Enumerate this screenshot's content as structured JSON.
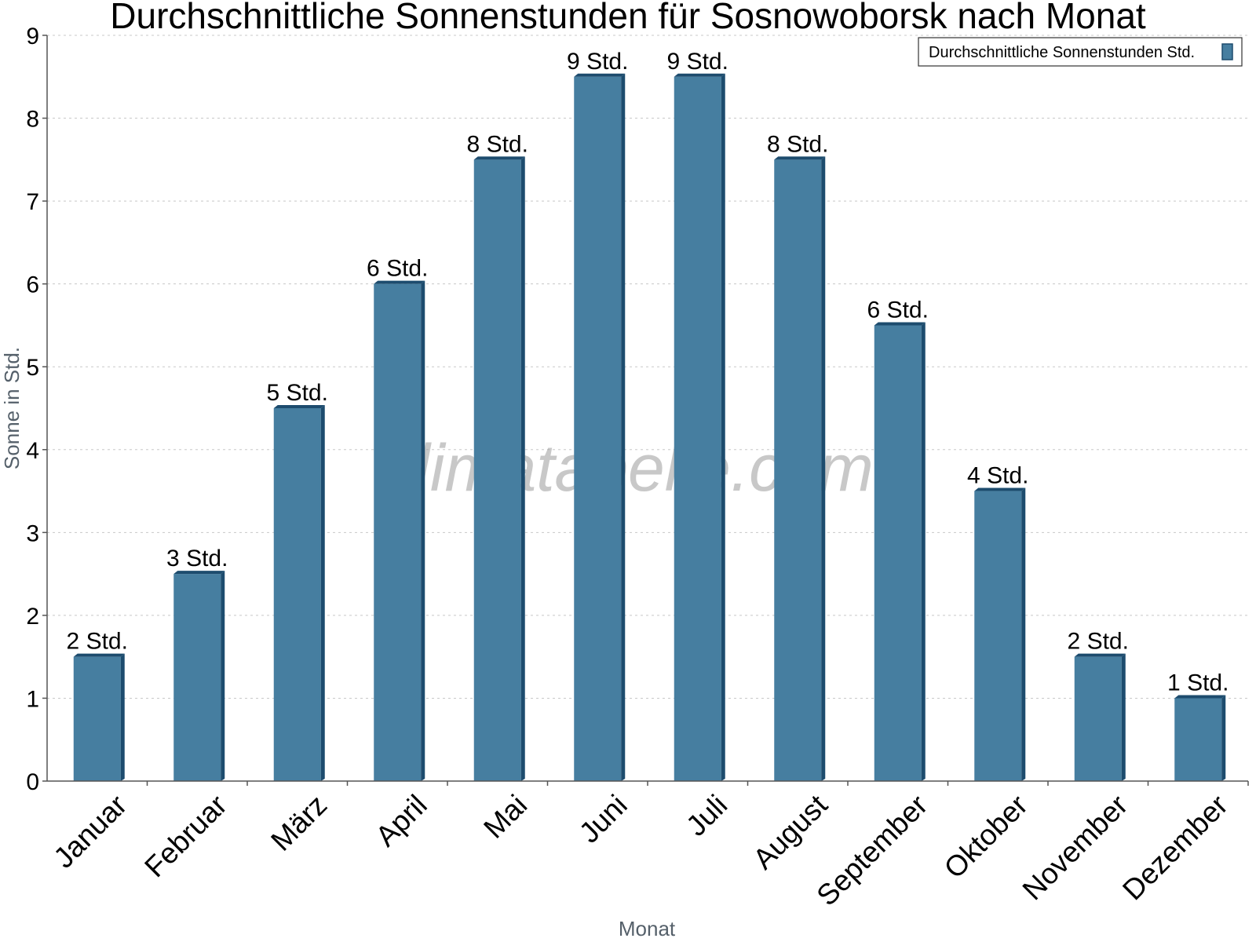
{
  "chart_data": {
    "type": "bar",
    "title": "Durchschnittliche Sonnenstunden für Sosnowoborsk nach Monat",
    "xlabel": "Monat",
    "ylabel": "Sonne in Std.",
    "ylim": [
      0,
      9
    ],
    "yticks": [
      "0",
      "1",
      "2",
      "3",
      "4",
      "5",
      "6",
      "7",
      "8",
      "9"
    ],
    "grid": true,
    "legend_position": "top-right",
    "watermark": "klimatabelle.com",
    "colors": {
      "bar": "#467ea0",
      "bar_side": "#1d4c6e",
      "bar_top": "#1d4c6e"
    },
    "categories": [
      "Januar",
      "Februar",
      "März",
      "April",
      "Mai",
      "Juni",
      "Juli",
      "August",
      "September",
      "Oktober",
      "November",
      "Dezember"
    ],
    "series": [
      {
        "name": "Durchschnittliche Sonnenstunden Std.",
        "values": [
          1.5,
          2.5,
          4.5,
          6.0,
          7.5,
          8.5,
          8.5,
          7.5,
          5.5,
          3.5,
          1.5,
          1.0
        ],
        "labels": [
          "2 Std.",
          "3 Std.",
          "5 Std.",
          "6 Std.",
          "8 Std.",
          "9 Std.",
          "9 Std.",
          "8 Std.",
          "6 Std.",
          "4 Std.",
          "2 Std.",
          "1 Std."
        ]
      }
    ]
  }
}
